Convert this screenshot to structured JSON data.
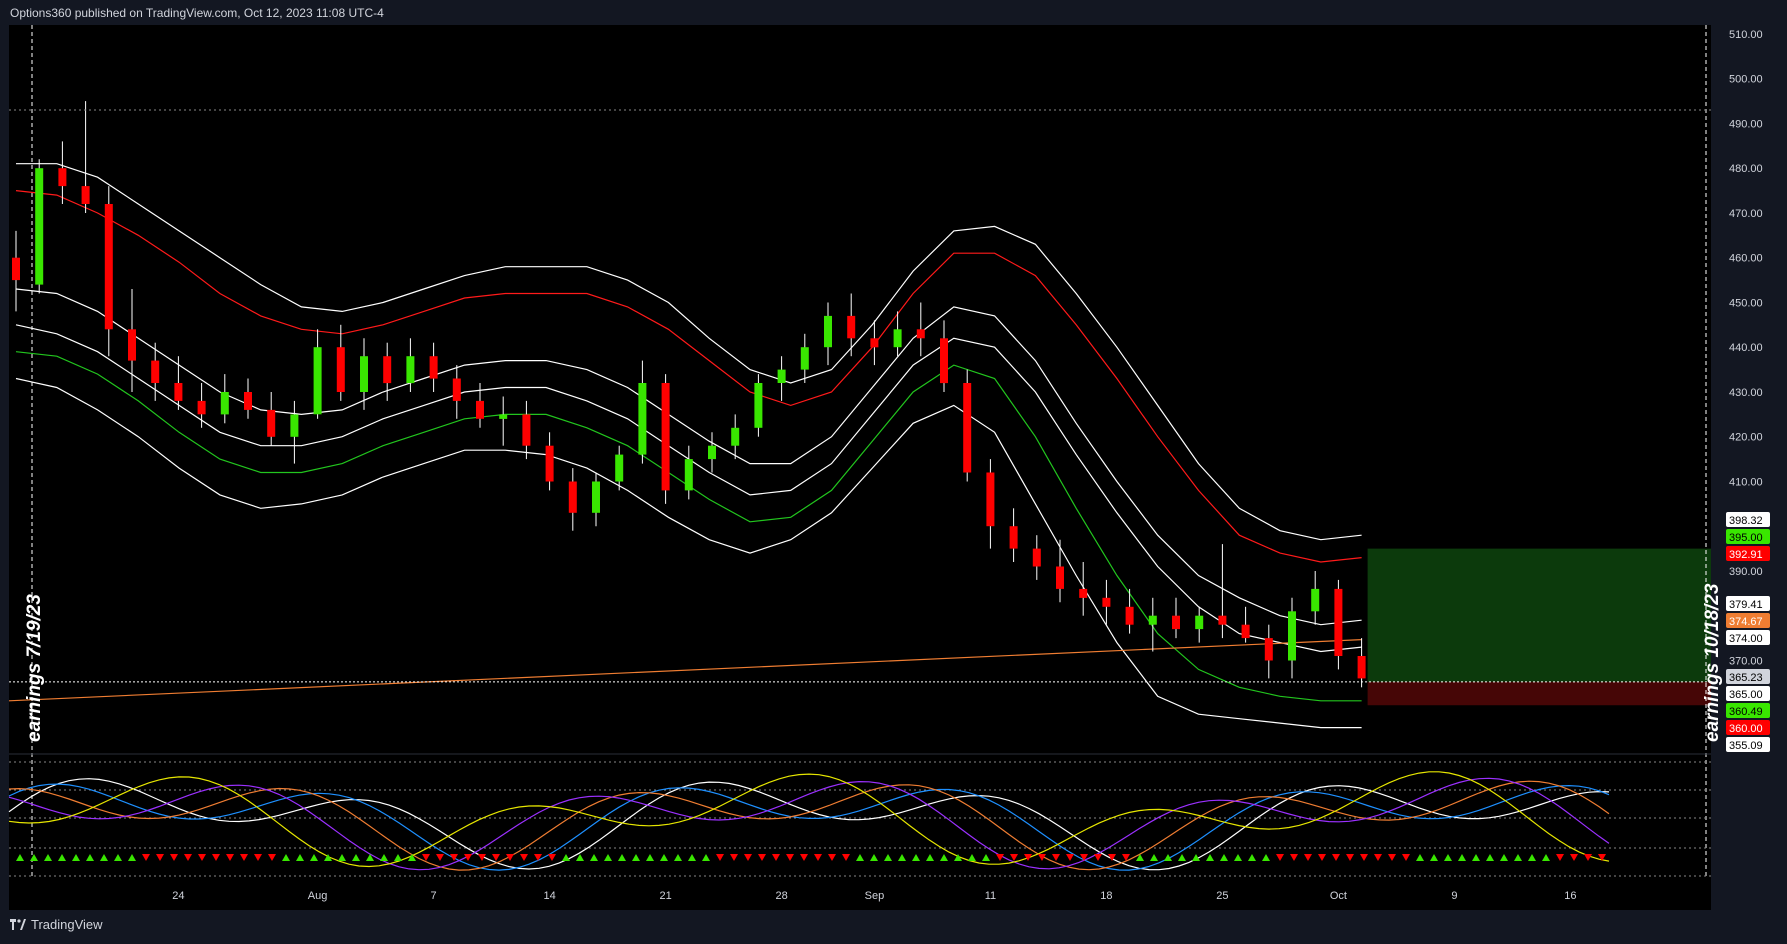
{
  "header": {
    "title": "Options360 published on TradingView.com, Oct 12, 2023 11:08 UTC-4"
  },
  "footer": {
    "brand": "TradingView",
    "logo_icon": "tradingview-logo-icon"
  },
  "chart_data": {
    "type": "candlestick",
    "price_axis": {
      "range": [
        350,
        512
      ],
      "ticks": [
        "510.00",
        "500.00",
        "490.00",
        "480.00",
        "470.00",
        "460.00",
        "450.00",
        "440.00",
        "430.00",
        "420.00",
        "410.00",
        "390.00",
        "370.00"
      ]
    },
    "price_tags": [
      {
        "label": "398.32",
        "value": 398.32,
        "bg": "#ffffff",
        "fg": "#000000"
      },
      {
        "label": "395.00",
        "value": 395.0,
        "bg": "#39e600",
        "fg": "#000000"
      },
      {
        "label": "392.91",
        "value": 392.91,
        "bg": "#ff0000",
        "fg": "#ffffff"
      },
      {
        "label": "379.41",
        "value": 379.41,
        "bg": "#ffffff",
        "fg": "#000000"
      },
      {
        "label": "374.67",
        "value": 374.67,
        "bg": "#ef7d32",
        "fg": "#ffffff"
      },
      {
        "label": "374.00",
        "value": 374.0,
        "bg": "#ffffff",
        "fg": "#000000"
      },
      {
        "label": "365.23",
        "value": 365.23,
        "bg": "#d1d4dc",
        "fg": "#000000"
      },
      {
        "label": "365.00",
        "value": 365.0,
        "bg": "#ffffff",
        "fg": "#000000"
      },
      {
        "label": "360.49",
        "value": 360.49,
        "bg": "#39e600",
        "fg": "#000000"
      },
      {
        "label": "360.00",
        "value": 360.0,
        "bg": "#ff0000",
        "fg": "#ffffff"
      },
      {
        "label": "355.09",
        "value": 355.09,
        "bg": "#ffffff",
        "fg": "#000000"
      }
    ],
    "date_ticks": [
      {
        "label": "24",
        "index": 7
      },
      {
        "label": "Aug",
        "index": 13
      },
      {
        "label": "7",
        "index": 18
      },
      {
        "label": "14",
        "index": 23
      },
      {
        "label": "21",
        "index": 28
      },
      {
        "label": "28",
        "index": 33
      },
      {
        "label": "Sep",
        "index": 37
      },
      {
        "label": "11",
        "index": 42
      },
      {
        "label": "18",
        "index": 47
      },
      {
        "label": "25",
        "index": 52
      },
      {
        "label": "Oct",
        "index": 57
      },
      {
        "label": "9",
        "index": 62
      },
      {
        "label": "16",
        "index": 67
      }
    ],
    "annotations": {
      "earnings_left": "earnings 7/19/23",
      "earnings_right": "earnings 10/18/23"
    },
    "candles": [
      [
        460,
        466,
        448,
        455
      ],
      [
        454,
        482,
        452,
        480
      ],
      [
        480,
        486,
        472,
        476
      ],
      [
        476,
        495,
        470,
        472
      ],
      [
        472,
        476,
        438,
        444
      ],
      [
        444,
        453,
        430,
        437
      ],
      [
        437,
        441,
        428,
        432
      ],
      [
        432,
        438,
        426,
        428
      ],
      [
        428,
        432,
        422,
        425
      ],
      [
        425,
        434,
        423,
        430
      ],
      [
        430,
        433,
        424,
        426
      ],
      [
        426,
        430,
        418,
        420
      ],
      [
        420,
        428,
        414,
        425
      ],
      [
        425,
        444,
        424,
        440
      ],
      [
        440,
        445,
        428,
        430
      ],
      [
        430,
        442,
        426,
        438
      ],
      [
        438,
        441,
        428,
        432
      ],
      [
        432,
        442,
        430,
        438
      ],
      [
        438,
        441,
        430,
        433
      ],
      [
        433,
        436,
        424,
        428
      ],
      [
        428,
        432,
        422,
        424
      ],
      [
        424,
        429,
        418,
        425
      ],
      [
        425,
        428,
        415,
        418
      ],
      [
        418,
        421,
        408,
        410
      ],
      [
        410,
        413,
        399,
        403
      ],
      [
        403,
        412,
        400,
        410
      ],
      [
        410,
        418,
        408,
        416
      ],
      [
        416,
        437,
        414,
        432
      ],
      [
        432,
        434,
        405,
        408
      ],
      [
        408,
        418,
        406,
        415
      ],
      [
        415,
        421,
        412,
        418
      ],
      [
        418,
        425,
        415,
        422
      ],
      [
        422,
        434,
        420,
        432
      ],
      [
        432,
        438,
        428,
        435
      ],
      [
        435,
        443,
        432,
        440
      ],
      [
        440,
        450,
        436,
        447
      ],
      [
        447,
        452,
        438,
        442
      ],
      [
        442,
        446,
        436,
        440
      ],
      [
        440,
        448,
        438,
        444
      ],
      [
        444,
        450,
        438,
        442
      ],
      [
        442,
        446,
        430,
        432
      ],
      [
        432,
        435,
        410,
        412
      ],
      [
        412,
        415,
        395,
        400
      ],
      [
        400,
        404,
        392,
        395
      ],
      [
        395,
        398,
        388,
        391
      ],
      [
        391,
        397,
        383,
        386
      ],
      [
        386,
        392,
        380,
        384
      ],
      [
        384,
        388,
        378,
        382
      ],
      [
        382,
        386,
        376,
        378
      ],
      [
        378,
        384,
        372,
        380
      ],
      [
        380,
        384,
        375,
        377
      ],
      [
        377,
        382,
        374,
        380
      ],
      [
        380,
        396,
        375,
        378
      ],
      [
        378,
        382,
        374,
        375
      ],
      [
        375,
        378,
        366,
        370
      ],
      [
        370,
        384,
        366,
        381
      ],
      [
        381,
        390,
        378,
        386
      ],
      [
        386,
        388,
        368,
        371
      ],
      [
        371,
        375,
        364,
        366
      ]
    ],
    "bands": {
      "outer_upper_white": [
        481,
        481,
        478,
        472,
        466,
        460,
        454,
        449,
        448,
        450,
        453,
        456,
        458,
        458,
        458,
        455,
        450,
        442,
        435,
        432,
        435,
        445,
        457,
        466,
        467,
        463,
        452,
        440,
        427,
        414,
        404,
        399,
        397,
        398
      ],
      "red_upper": [
        475,
        474,
        470,
        465,
        459,
        452,
        447,
        444,
        443,
        445,
        448,
        451,
        452,
        452,
        452,
        449,
        444,
        437,
        430,
        427,
        430,
        440,
        452,
        461,
        461,
        456,
        445,
        433,
        420,
        408,
        398,
        394,
        392,
        393
      ],
      "white_mid_hi": [
        453,
        452,
        448,
        442,
        436,
        430,
        426,
        425,
        426,
        430,
        433,
        436,
        437,
        437,
        435,
        431,
        425,
        419,
        414,
        414,
        420,
        431,
        442,
        449,
        447,
        437,
        423,
        410,
        398,
        389,
        384,
        380,
        378,
        379
      ],
      "white_mid_lo": [
        445,
        443,
        439,
        433,
        427,
        421,
        418,
        418,
        420,
        424,
        427,
        430,
        431,
        431,
        428,
        424,
        418,
        412,
        407,
        408,
        414,
        425,
        436,
        442,
        440,
        430,
        416,
        403,
        391,
        382,
        376,
        374,
        372,
        373
      ],
      "green_lower": [
        439,
        438,
        434,
        428,
        421,
        415,
        412,
        412,
        414,
        418,
        421,
        424,
        425,
        425,
        422,
        418,
        412,
        406,
        401,
        402,
        408,
        419,
        430,
        436,
        433,
        420,
        404,
        389,
        376,
        368,
        364,
        362,
        361,
        361
      ],
      "outer_lower_white": [
        433,
        431,
        426,
        420,
        413,
        407,
        404,
        405,
        407,
        411,
        414,
        417,
        417,
        416,
        413,
        408,
        402,
        397,
        394,
        397,
        403,
        413,
        423,
        427,
        421,
        405,
        389,
        374,
        362,
        358,
        357,
        356,
        355,
        355
      ]
    },
    "ma_line": {
      "start": 361,
      "end": 374.67
    }
  }
}
